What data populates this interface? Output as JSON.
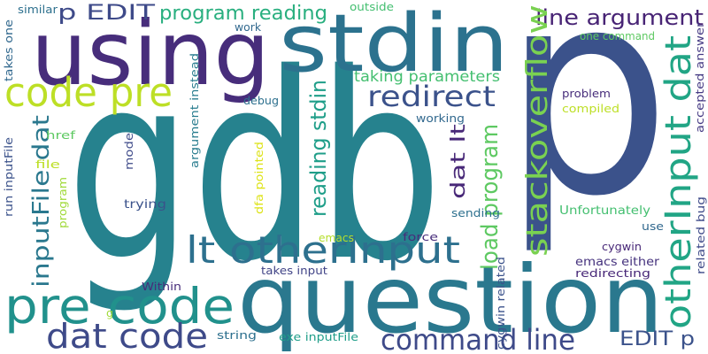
{
  "words": [
    "gdb",
    "p",
    "using",
    "stdin",
    "question",
    "pre code",
    "code pre",
    "lt otherInput",
    "dat code",
    "command line",
    "redirect",
    "p EDIT",
    "program reading",
    "line argument",
    "EDIT p",
    "stackoverflow",
    "otherInput dat",
    "inputFile dat",
    "reading stdin",
    "load program",
    "dat lt",
    "taking parameters",
    "outside",
    "work",
    "one command",
    "debug",
    "working",
    "problem",
    "compiled",
    "accepted answer",
    "argument instead",
    "mode",
    "dfa pointed",
    "href",
    "file",
    "run inputFile",
    "similar",
    "takes one",
    "program",
    "trying",
    "sending",
    "Unfortunately",
    "use",
    "related bug",
    "emacs",
    "force",
    "cygwin",
    "emacs either",
    "redirecting",
    "takes input",
    "Within",
    "cygwin related",
    "g",
    "string",
    "exe inputFile"
  ]
}
